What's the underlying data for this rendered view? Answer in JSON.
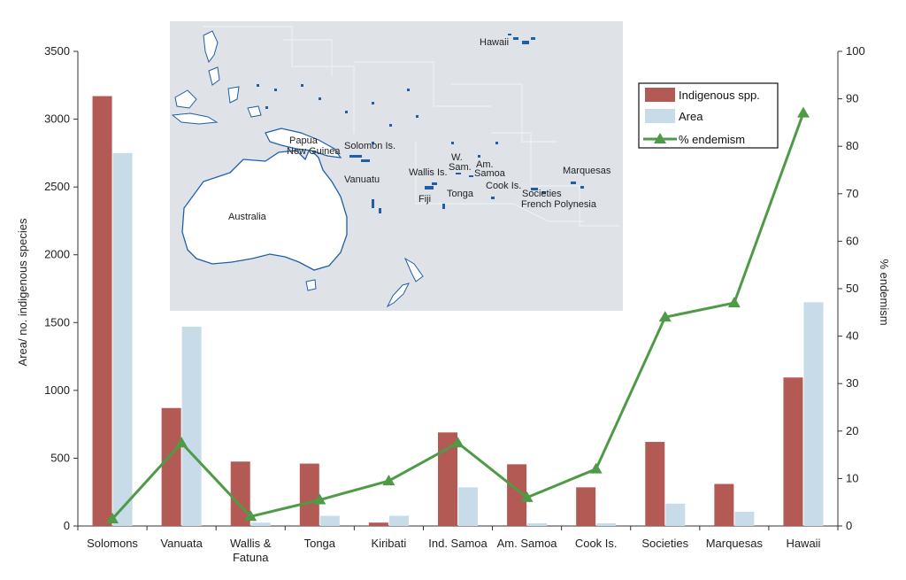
{
  "chart_data": {
    "type": "bar",
    "categories": [
      "Solomons",
      "Vanuata",
      "Wallis &\nFatuna",
      "Tonga",
      "Kiribati",
      "Ind. Samoa",
      "Am. Samoa",
      "Cook Is.",
      "Societies",
      "Marquesas",
      "Hawaii"
    ],
    "series": [
      {
        "name": "Indigenous spp.",
        "type": "bar",
        "axis": "left",
        "color": "#b45a55",
        "values": [
          3170,
          870,
          475,
          460,
          25,
          690,
          455,
          285,
          620,
          310,
          1095
        ]
      },
      {
        "name": "Area",
        "type": "bar",
        "axis": "left",
        "color": "#c8dbe8",
        "values": [
          2750,
          1470,
          25,
          75,
          75,
          285,
          20,
          20,
          165,
          105,
          1650
        ]
      },
      {
        "name": "% endemism",
        "type": "line",
        "axis": "right",
        "color": "#4f9a47",
        "marker": "triangle",
        "values": [
          1.5,
          17.5,
          2,
          5.5,
          9.5,
          17.5,
          6,
          12,
          44,
          47,
          87
        ]
      }
    ],
    "ylabel": "Area/ no. indigenous species",
    "y2label": "% endemism",
    "ylim": [
      0,
      3500
    ],
    "y2lim": [
      0,
      100
    ],
    "yticks": [
      "0",
      "500",
      "1000",
      "1500",
      "2000",
      "2500",
      "3000",
      "3500"
    ],
    "y2ticks": [
      "0",
      "10",
      "20",
      "30",
      "40",
      "50",
      "60",
      "70",
      "80",
      "90",
      "100"
    ],
    "legend_position": "top-right",
    "grid": false
  },
  "inset_map": {
    "labels": {
      "hawaii": "Hawaii",
      "papua1": "Papua",
      "papua2": "New Guinea",
      "solomon": "Solomon Is.",
      "vanuatu": "Vanuatu",
      "wallis": "Wallis Is.",
      "wsam1": "W.",
      "wsam2": "Sam.",
      "amsam1": "Am.",
      "amsam2": "Samoa",
      "fiji": "Fiji",
      "tonga": "Tonga",
      "cook": "Cook Is.",
      "societies": "Societies",
      "frenchpoly": "French Polynesia",
      "marquesas": "Marquesas",
      "australia": "Australia"
    },
    "colors": {
      "ocean": "#dfe3e8",
      "land": "#ffffff",
      "coast": "#1f5fa8"
    }
  }
}
